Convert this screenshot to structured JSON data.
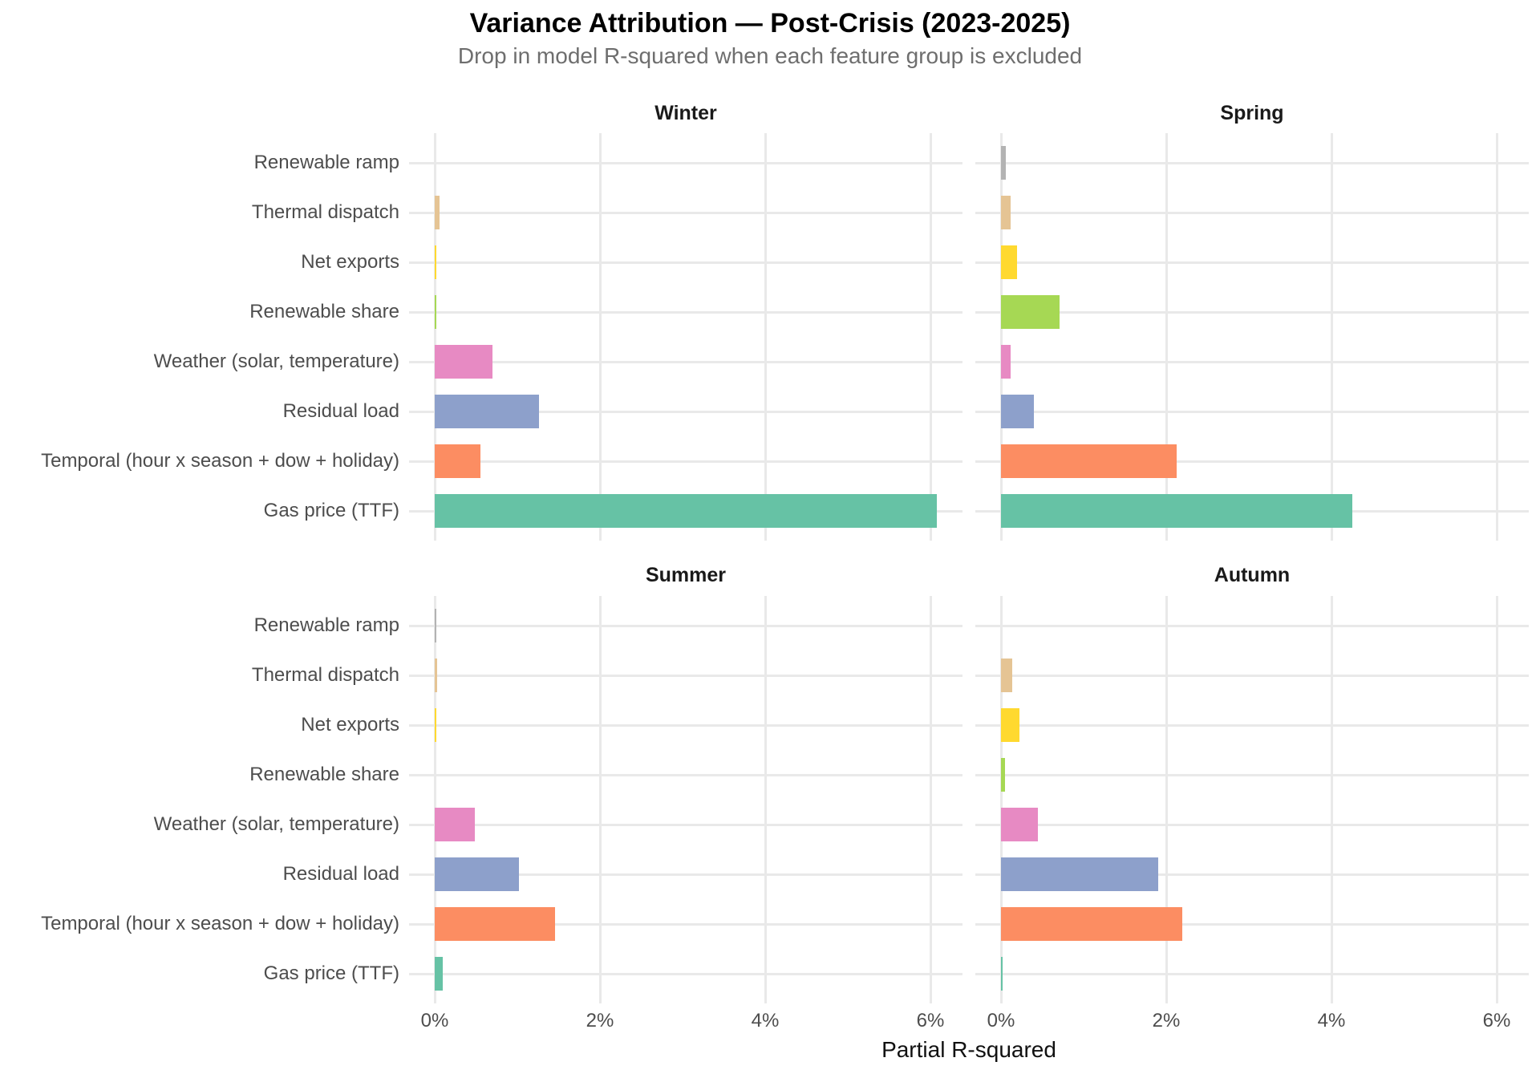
{
  "header": {
    "title": "Variance Attribution — Post-Crisis (2023-2025)",
    "subtitle": "Drop in model R-squared when each feature group is excluded"
  },
  "axis": {
    "x_title": "Partial R-squared"
  },
  "chart_data": {
    "type": "bar",
    "orientation": "horizontal",
    "unit": "percent",
    "facets": [
      "Winter",
      "Spring",
      "Summer",
      "Autumn"
    ],
    "categories": [
      "Renewable ramp",
      "Thermal dispatch",
      "Net exports",
      "Renewable share",
      "Weather (solar, temperature)",
      "Residual load",
      "Temporal (hour x season + dow + holiday)",
      "Gas price (TTF)"
    ],
    "series": [
      {
        "name": "Winter",
        "values": [
          0,
          0.06,
          0.01,
          0.02,
          0.7,
          1.26,
          0.55,
          6.08
        ]
      },
      {
        "name": "Spring",
        "values": [
          0.06,
          0.12,
          0.19,
          0.71,
          0.12,
          0.4,
          2.13,
          4.25
        ]
      },
      {
        "name": "Summer",
        "values": [
          0.01,
          0.03,
          0.02,
          0,
          0.49,
          1.02,
          1.46,
          0.1
        ]
      },
      {
        "name": "Autumn",
        "values": [
          0,
          0.14,
          0.22,
          0.05,
          0.45,
          1.9,
          2.19,
          0.02
        ]
      }
    ],
    "category_colors": {
      "Renewable ramp": "#B3B3B3",
      "Thermal dispatch": "#E5C494",
      "Net exports": "#FFD92F",
      "Renewable share": "#A6D854",
      "Weather (solar, temperature)": "#E78AC3",
      "Residual load": "#8DA0CB",
      "Temporal (hour x season + dow + holiday)": "#FC8D62",
      "Gas price (TTF)": "#66C2A5"
    },
    "xlabel": "Partial R-squared",
    "ylabel": "",
    "x_ticks": [
      "0%",
      "2%",
      "4%",
      "6%"
    ],
    "x_tick_values": [
      0,
      2,
      4,
      6
    ],
    "xlim": [
      0,
      6.4
    ],
    "grid": "major-only",
    "legend": "none"
  }
}
